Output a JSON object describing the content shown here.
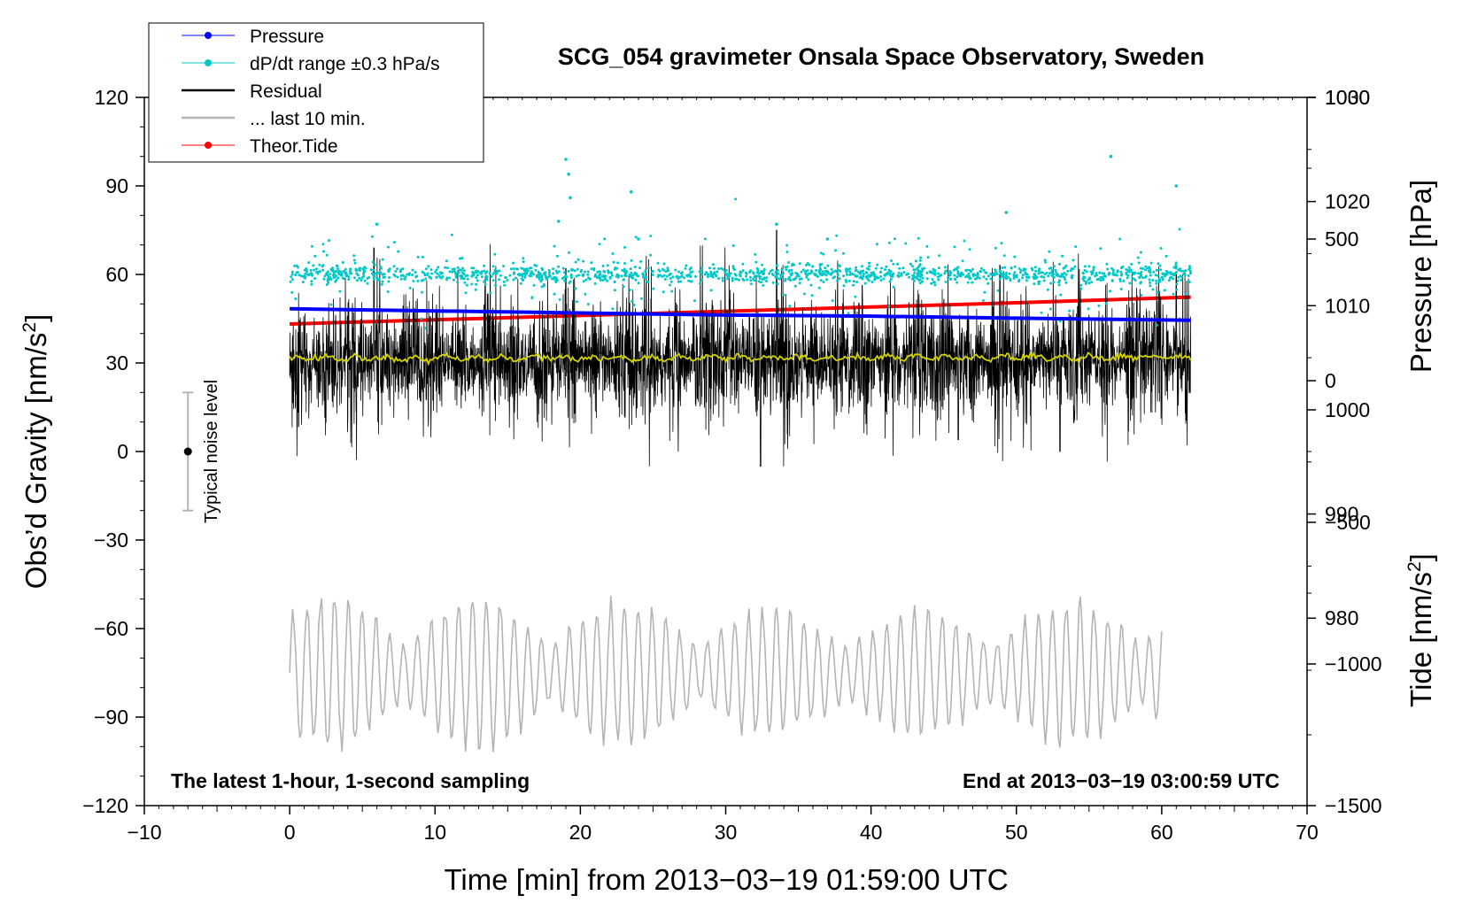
{
  "chart_data": {
    "type": "line",
    "title": "SCG_054 gravimeter Onsala Space Observatory, Sweden",
    "xlabel": "Time [min] from 2013−03−19 01:59:00 UTC",
    "ylabel": "Obs’d Gravity [nm/s",
    "ylabel_sup": "2",
    "ylabel_close": "]",
    "y2label": "Pressure [hPa]",
    "y3label": "Tide [nm/s",
    "y3label_sup": "2",
    "y3label_close": "]",
    "xlim": [
      -10,
      70
    ],
    "ylim": [
      -120,
      120
    ],
    "y2lim": [
      962,
      1030
    ],
    "y3lim": [
      -1500,
      1000
    ],
    "x_ticks": [
      -10,
      0,
      10,
      20,
      30,
      40,
      50,
      60,
      70
    ],
    "x_tick_labels": [
      "−10",
      "0",
      "10",
      "20",
      "30",
      "40",
      "50",
      "60",
      "70"
    ],
    "y_ticks": [
      -120,
      -90,
      -60,
      -30,
      0,
      30,
      60,
      90,
      120
    ],
    "y_tick_labels": [
      "−120",
      "−90",
      "−60",
      "−30",
      "0",
      "30",
      "60",
      "90",
      "120"
    ],
    "y2_ticks": [
      980,
      990,
      1000,
      1010,
      1020,
      1030
    ],
    "y2_tick_labels": [
      "980",
      "990",
      "1000",
      "1010",
      "1020",
      "1030"
    ],
    "y3_ticks": [
      -1500,
      -1000,
      -500,
      0,
      500,
      1000
    ],
    "y3_tick_labels": [
      "−1500",
      "−1000",
      "−500",
      "0",
      "500",
      "1000"
    ],
    "grid": false,
    "legend_position": "top-left",
    "annotations": {
      "bottom_left": "The latest 1-hour, 1-second sampling",
      "bottom_right": "End at 2013−03−19 03:00:59 UTC",
      "noise_label": "Typical noise level"
    },
    "noise_bar": {
      "x": -7,
      "center": 0,
      "half_range": 20
    },
    "colors": {
      "pressure": "#0000ff",
      "dpdt": "#00c8c8",
      "residual": "#000000",
      "last10": "#b4b4b4",
      "tide": "#ff0000",
      "smooth": "#d2d200",
      "noise": "#b4b4b4"
    },
    "series": [
      {
        "name": "Pressure",
        "key": "pressure",
        "axis": "y2",
        "style": "line-marker",
        "x": [
          0,
          10,
          20,
          30,
          40,
          50,
          62
        ],
        "y": [
          1009.7,
          1009.5,
          1009.3,
          1009.1,
          1009.0,
          1008.8,
          1008.6
        ]
      },
      {
        "name": "dP/dt range ±0.3 hPa/s",
        "key": "dpdt",
        "axis": "y",
        "style": "scatter",
        "center": 60,
        "typical_spread": 2.5,
        "outliers": [
          {
            "x": 6,
            "y": 77
          },
          {
            "x": 18.5,
            "y": 78
          },
          {
            "x": 19,
            "y": 99
          },
          {
            "x": 19.2,
            "y": 94
          },
          {
            "x": 19.3,
            "y": 86
          },
          {
            "x": 23.5,
            "y": 88
          },
          {
            "x": 24,
            "y": 72
          },
          {
            "x": 33.5,
            "y": 77
          },
          {
            "x": 49.3,
            "y": 81
          },
          {
            "x": 56.5,
            "y": 100
          },
          {
            "x": 61,
            "y": 90
          },
          {
            "x": 37,
            "y": 72
          }
        ]
      },
      {
        "name": "Residual",
        "key": "residual",
        "axis": "y",
        "style": "line",
        "center": 31,
        "typical_amplitude": 15,
        "burst_peaks": [
          {
            "x": 5.8,
            "y": 69
          },
          {
            "x": 19,
            "y": 62
          },
          {
            "x": 32.4,
            "y": -5
          },
          {
            "x": 33.5,
            "y": 75
          },
          {
            "x": 46,
            "y": 4
          },
          {
            "x": 53,
            "y": 0
          },
          {
            "x": 61,
            "y": 60
          }
        ]
      },
      {
        "name": "... last 10 min.",
        "key": "last10",
        "axis": "y",
        "style": "line",
        "center": -75,
        "min": -107,
        "max": -46,
        "x_range": [
          0,
          60
        ]
      },
      {
        "name": "Theor.Tide",
        "key": "tide",
        "axis": "y3",
        "style": "line-marker",
        "x": [
          0,
          10,
          20,
          30,
          40,
          50,
          62
        ],
        "y": [
          200,
          215,
          230,
          245,
          260,
          275,
          295
        ]
      },
      {
        "key": "smooth",
        "axis": "y",
        "style": "line",
        "center": 31.5
      }
    ]
  }
}
